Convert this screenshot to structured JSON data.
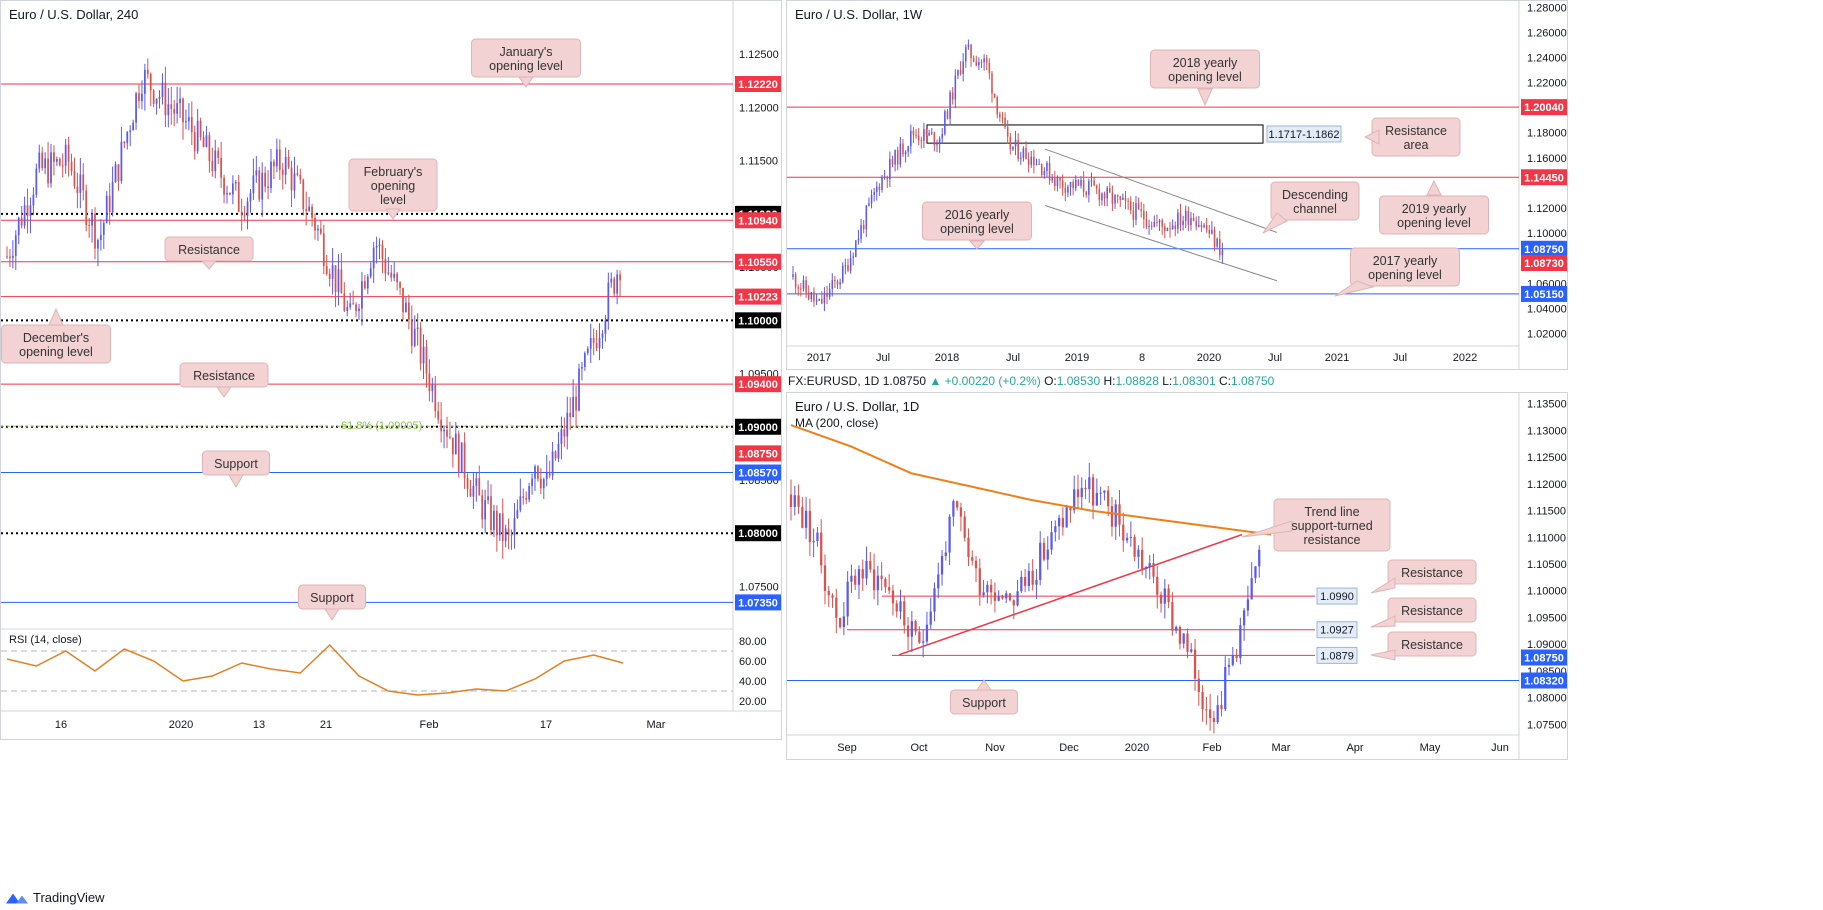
{
  "app": {
    "brand": "TradingView"
  },
  "panels": {
    "h4": {
      "title": "Euro / U.S. Dollar, 240",
      "rsi_label": "RSI (14, close)",
      "price_ticks": [
        "1.12500",
        "1.12000",
        "1.11500",
        "1.10500",
        "1.09500",
        "1.08500",
        "1.07500"
      ],
      "rsi_ticks": [
        "80.00",
        "60.00",
        "40.00",
        "20.00"
      ],
      "time_ticks": [
        "16",
        "2020",
        "13",
        "21",
        "Feb",
        "17",
        "Mar"
      ],
      "fib_label": "61.8% (1.09005)",
      "levels": [
        {
          "value": "1.12220",
          "color": "#f23645",
          "style": "solid"
        },
        {
          "value": "1.11000",
          "color": "#000000",
          "style": "dotted"
        },
        {
          "value": "1.10940",
          "color": "#f23645",
          "style": "solid"
        },
        {
          "value": "1.10550",
          "color": "#f23645",
          "style": "solid"
        },
        {
          "value": "1.10223",
          "color": "#f23645",
          "style": "solid"
        },
        {
          "value": "1.10000",
          "color": "#000000",
          "style": "dotted"
        },
        {
          "value": "1.09400",
          "color": "#f23645",
          "style": "solid"
        },
        {
          "value": "1.09000",
          "color": "#000000",
          "style": "dotted"
        },
        {
          "value": "1.08750",
          "color": "#f23645",
          "style": "price"
        },
        {
          "value": "1.08570",
          "color": "#2962ff",
          "style": "solid"
        },
        {
          "value": "1.08000",
          "color": "#000000",
          "style": "dotted"
        },
        {
          "value": "1.07350",
          "color": "#2962ff",
          "style": "solid"
        }
      ],
      "callouts": [
        "January's opening level",
        "February's opening level",
        "Resistance",
        "December's opening level",
        "Resistance",
        "Support",
        "Support"
      ]
    },
    "weekly": {
      "title": "Euro / U.S. Dollar, 1W",
      "price_ticks": [
        "1.28000",
        "1.26000",
        "1.24000",
        "1.22000",
        "1.18000",
        "1.16000",
        "1.12000",
        "1.10000",
        "1.06000",
        "1.04000",
        "1.02000"
      ],
      "time_ticks": [
        "2017",
        "Jul",
        "2018",
        "Jul",
        "2019",
        "8",
        "2020",
        "Jul",
        "2021",
        "Jul",
        "2022"
      ],
      "levels": [
        {
          "value": "1.20040",
          "color": "#f23645"
        },
        {
          "value": "1.14450",
          "color": "#f23645"
        },
        {
          "value": "1.08750",
          "color": "#2962ff"
        },
        {
          "value": "1.08730",
          "color": "#f23645"
        },
        {
          "value": "1.05150",
          "color": "#2962ff"
        }
      ],
      "zone_label": "1.1717-1.1862",
      "callouts": [
        "2018 yearly opening level",
        "Resistance area",
        "Descending channel",
        "2016 yearly opening level",
        "2019 yearly opening level",
        "2017 yearly opening level"
      ]
    },
    "daily": {
      "symbol_line": "FX:EURUSD, 1D",
      "close": "1.08750",
      "change": "+0.00220 (+0.2%)",
      "open_label": "O:",
      "open": "1.08530",
      "high_label": "H:",
      "high": "1.08828",
      "low_label": "L:",
      "low": "1.08301",
      "close_label": "C:",
      "close_val": "1.08750",
      "title": "Euro / U.S. Dollar, 1D",
      "ma_label": "MA (200, close)",
      "price_ticks": [
        "1.13500",
        "1.13000",
        "1.12500",
        "1.12000",
        "1.11500",
        "1.11000",
        "1.10500",
        "1.10000",
        "1.09500",
        "1.09000",
        "1.08500",
        "1.08000",
        "1.07500"
      ],
      "time_ticks": [
        "Sep",
        "Oct",
        "Nov",
        "Dec",
        "2020",
        "Feb",
        "Mar",
        "Apr",
        "May",
        "Jun"
      ],
      "levels": [
        {
          "value": "1.08750",
          "color": "#2962ff"
        },
        {
          "value": "1.08320",
          "color": "#2962ff"
        }
      ],
      "tags": [
        "1.0990",
        "1.0927",
        "1.0879"
      ],
      "callouts": [
        "Trend line support-turned resistance",
        "Resistance",
        "Resistance",
        "Resistance",
        "Support"
      ]
    }
  },
  "chart_data": [
    {
      "type": "line",
      "title": "Euro / U.S. Dollar, 240",
      "series": [
        {
          "name": "RSI (14, close)",
          "values": [
            62,
            55,
            70,
            50,
            72,
            60,
            40,
            45,
            58,
            52,
            48,
            76,
            45,
            30,
            26,
            28,
            32,
            30,
            42,
            60,
            66,
            58
          ]
        }
      ],
      "ylim": [
        1.071,
        1.13
      ],
      "horizontal_levels": [
        1.1222,
        1.11,
        1.1094,
        1.1055,
        1.10223,
        1.1,
        1.094,
        1.09,
        1.0875,
        1.0857,
        1.08,
        1.0735
      ]
    },
    {
      "type": "line",
      "title": "Euro / U.S. Dollar, 1W",
      "x": [
        "2017",
        "Jul",
        "2018",
        "Jul",
        "2019",
        "8",
        "2020"
      ],
      "ylim": [
        1.01,
        1.285
      ],
      "horizontal_levels": [
        1.2004,
        1.1445,
        1.0875,
        1.0873,
        1.0515
      ]
    },
    {
      "type": "line",
      "title": "Euro / U.S. Dollar, 1D",
      "series": [
        {
          "name": "MA (200, close)",
          "values": [
            1.131,
            1.127,
            1.122,
            1.1195,
            1.117,
            1.115,
            1.1135,
            1.112,
            1.1105
          ]
        }
      ],
      "ylim": [
        1.073,
        1.137
      ],
      "horizontal_levels": [
        1.099,
        1.0927,
        1.0879,
        1.0832
      ]
    }
  ]
}
